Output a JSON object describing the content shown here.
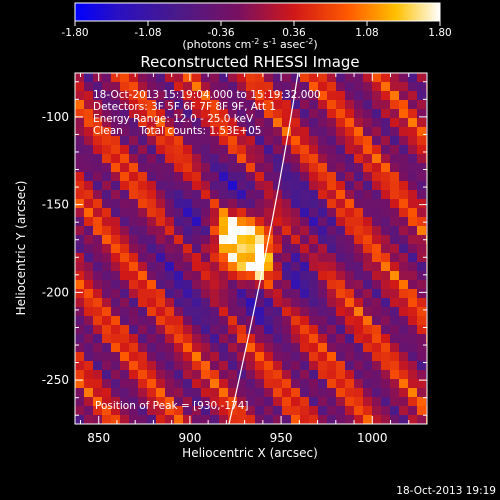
{
  "colorbar": {
    "ticks": [
      "-1.80",
      "-1.08",
      "-0.36",
      "0.36",
      "1.08",
      "1.80"
    ],
    "units_prefix": "(photons cm",
    "units_exp1": "-2",
    "units_mid": " s",
    "units_exp2": "-1",
    "units_mid2": " asec",
    "units_exp3": "-2",
    "units_suffix": ")"
  },
  "plot": {
    "title": "Reconstructed RHESSI Image",
    "xlabel": "Heliocentric X (arcsec)",
    "ylabel": "Heliocentric Y (arcsec)",
    "xticks": [
      "850",
      "900",
      "950",
      "1000"
    ],
    "yticks": [
      "-100",
      "-150",
      "-200",
      "-250"
    ],
    "info": [
      "18-Oct-2013 15:19:04.000 to 15:19:32.000",
      "Detectors: 3F 5F 6F 7F 8F 9F, Att 1",
      "Energy Range: 12.0 - 25.0 keV",
      "Clean     Total counts: 1.53E+05"
    ],
    "peak_label": "Position of Peak = [930,-174]"
  },
  "footer": {
    "timestamp": "18-Oct-2013 19:19"
  },
  "image_data": {
    "x_range": [
      837,
      1030
    ],
    "y_range": [
      -275,
      -75
    ],
    "value_range": [
      -1.8,
      1.8
    ],
    "peak": [
      930,
      -174
    ]
  }
}
